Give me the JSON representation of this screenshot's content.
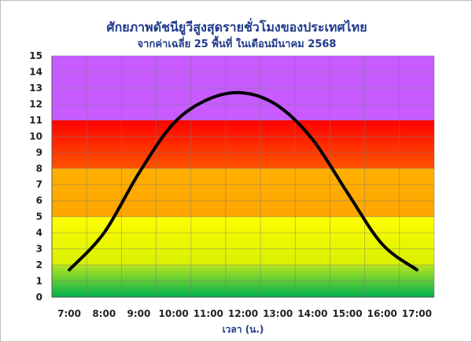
{
  "chart_data": {
    "type": "line",
    "title": "ศักยภาพดัชนียูวีสูงสุดรายชั่วโมงของประเทศไทย",
    "subtitle": "จากค่าเฉลี่ย 25 พื้นที่ ในเดือนมีนาคม 2568",
    "xlabel": "เวลา (น.)",
    "ylabel": "",
    "categories": [
      "7:00",
      "8:00",
      "9:00",
      "10:00",
      "11:00",
      "12:00",
      "13:00",
      "14:00",
      "15:00",
      "16:00",
      "17:00"
    ],
    "series": [
      {
        "values": [
          1.7,
          4.0,
          7.7,
          10.8,
          12.3,
          12.7,
          11.9,
          9.8,
          6.5,
          3.3,
          1.7
        ]
      }
    ],
    "ylim": [
      0,
      15
    ],
    "yticks": [
      0,
      1,
      2,
      3,
      4,
      5,
      6,
      7,
      8,
      9,
      10,
      11,
      12,
      13,
      14,
      15
    ],
    "grid": true,
    "bands": [
      {
        "from": 0,
        "to": 2,
        "colors": [
          "#00b050",
          "#b6e61e"
        ]
      },
      {
        "from": 2,
        "to": 5,
        "colors": [
          "#d8f000",
          "#ffff00"
        ]
      },
      {
        "from": 5,
        "to": 8,
        "colors": [
          "#ffa500",
          "#ffb000"
        ]
      },
      {
        "from": 8,
        "to": 11,
        "colors": [
          "#ff5500",
          "#ff0000"
        ]
      },
      {
        "from": 11,
        "to": 15,
        "colors": [
          "#c75bff",
          "#c75bff"
        ]
      }
    ],
    "line_color": "#000000"
  }
}
